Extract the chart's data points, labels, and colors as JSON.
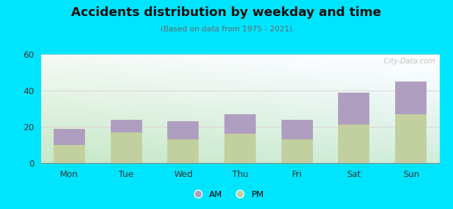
{
  "categories": [
    "Mon",
    "Tue",
    "Wed",
    "Thu",
    "Fri",
    "Sat",
    "Sun"
  ],
  "pm_values": [
    10,
    17,
    13,
    16,
    13,
    21,
    27
  ],
  "am_values": [
    9,
    7,
    10,
    11,
    11,
    18,
    18
  ],
  "am_color": "#b09ec0",
  "pm_color": "#c2cf9e",
  "title": "Accidents distribution by weekday and time",
  "subtitle": "(Based on data from 1975 - 2021)",
  "ylim": [
    0,
    60
  ],
  "yticks": [
    0,
    20,
    40,
    60
  ],
  "bg_color": "#00e5ff",
  "watermark": "  City-Data.com",
  "bar_width": 0.55,
  "title_fontsize": 13,
  "subtitle_fontsize": 8,
  "tick_fontsize": 9
}
